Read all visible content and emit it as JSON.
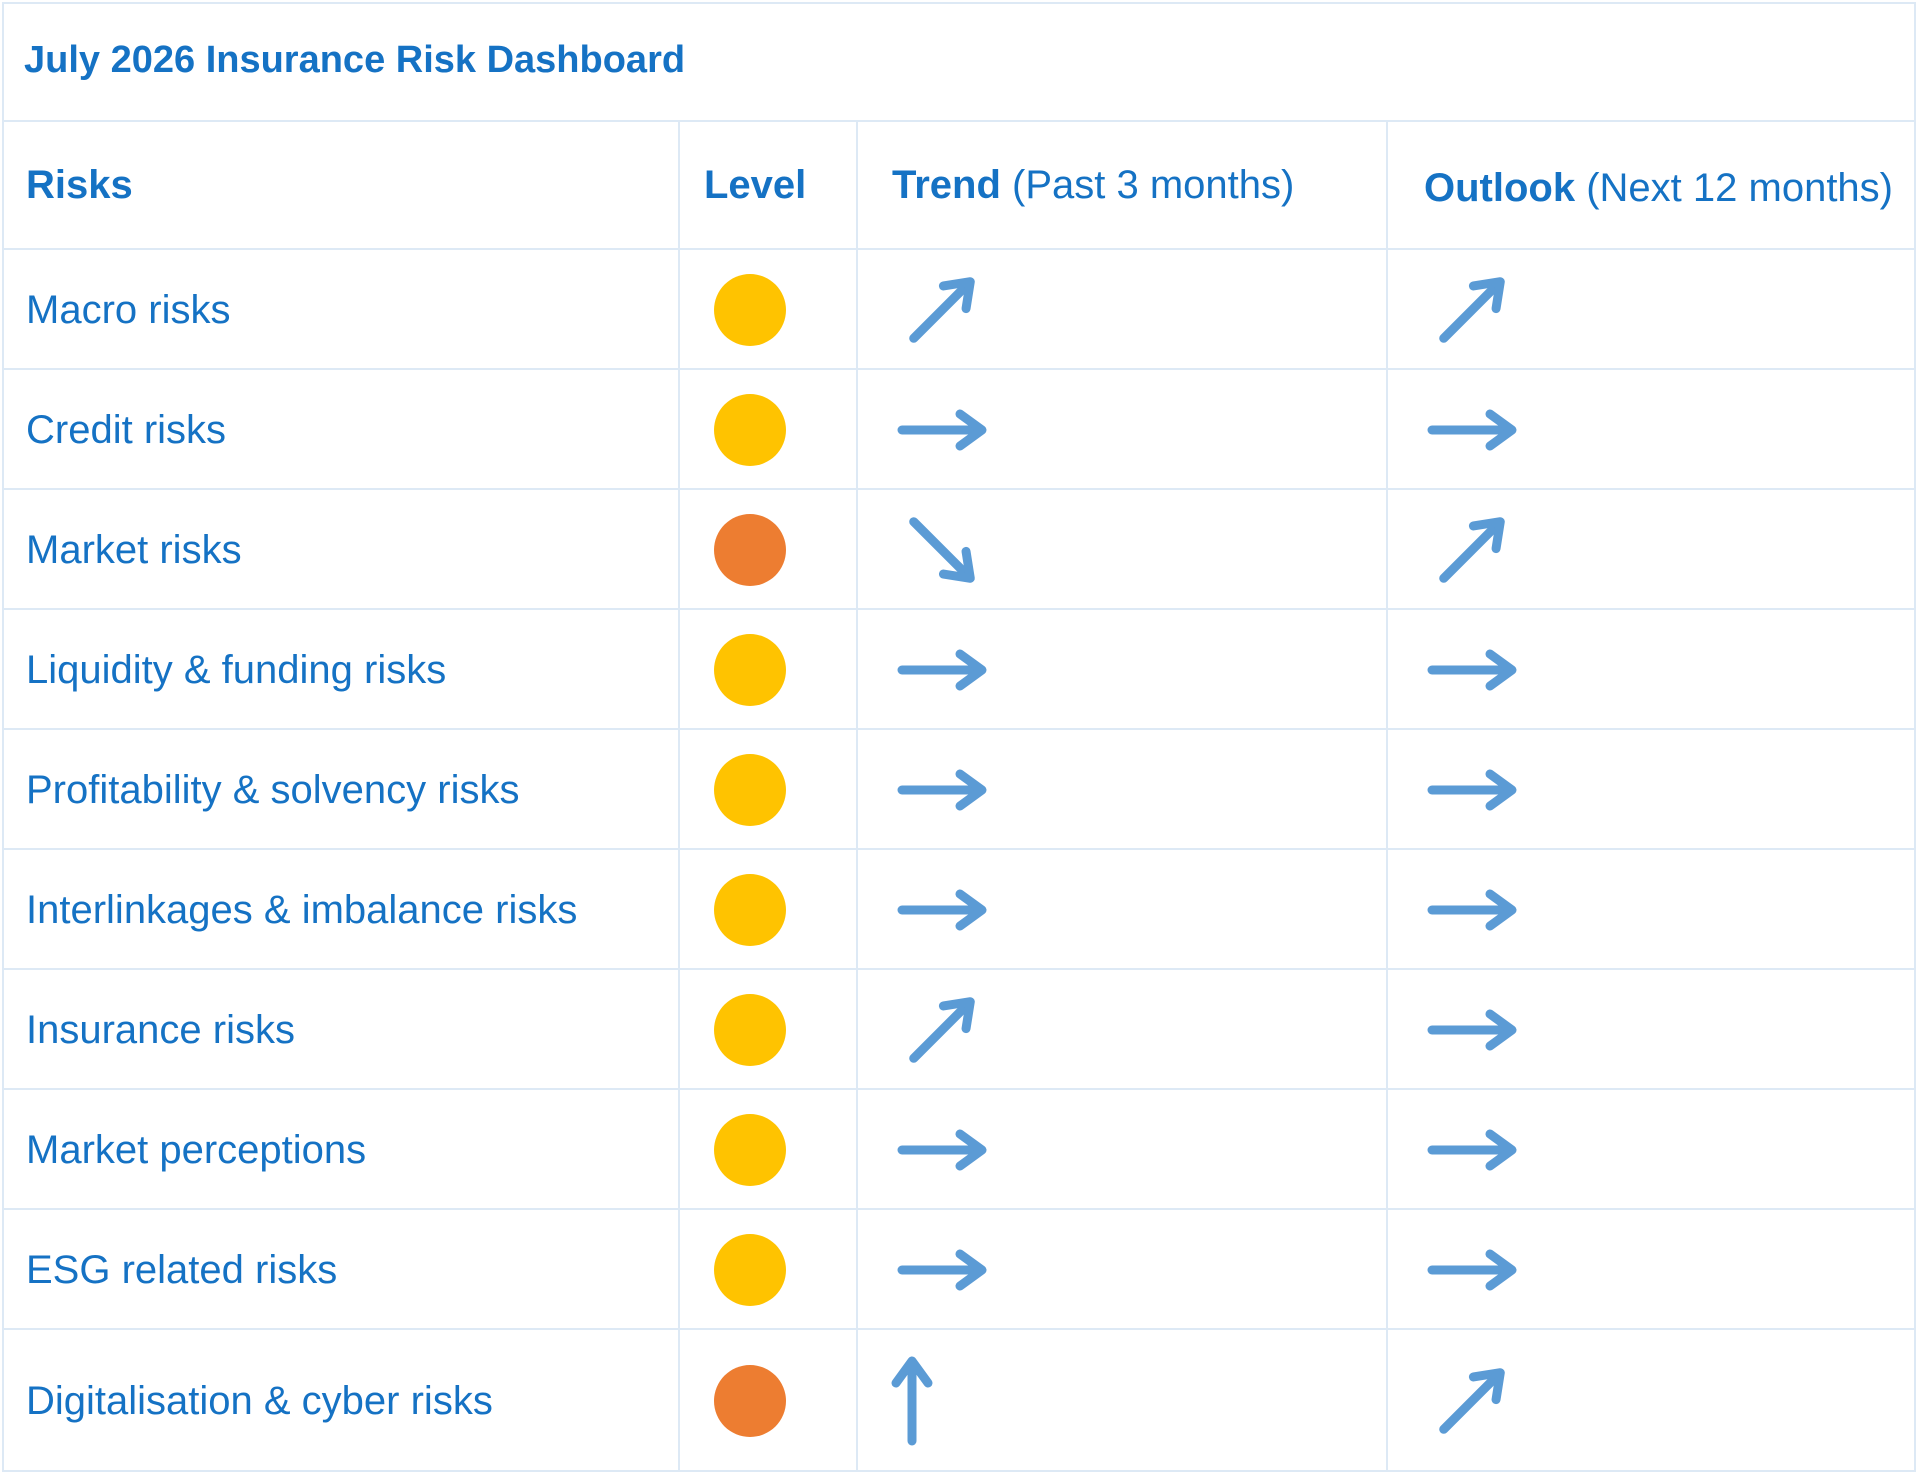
{
  "title": "July 2026 Insurance Risk Dashboard",
  "headers": {
    "risks": "Risks",
    "level": "Level",
    "trend_bold": "Trend",
    "trend_rest": "(Past 3 months)",
    "outlook_bold": "Outlook",
    "outlook_rest": "(Next 12 months)"
  },
  "colors": {
    "amber": "#ffc300",
    "orange": "#ed7d31",
    "arrow": "#5b9bd5",
    "text": "#1572c4"
  },
  "rows": [
    {
      "risk": "Macro risks",
      "level": "amber",
      "trend": "up-right",
      "outlook": "up-right"
    },
    {
      "risk": "Credit risks",
      "level": "amber",
      "trend": "right",
      "outlook": "right"
    },
    {
      "risk": "Market risks",
      "level": "orange",
      "trend": "down-right",
      "outlook": "up-right"
    },
    {
      "risk": "Liquidity & funding risks",
      "level": "amber",
      "trend": "right",
      "outlook": "right"
    },
    {
      "risk": "Profitability & solvency risks",
      "level": "amber",
      "trend": "right",
      "outlook": "right"
    },
    {
      "risk": "Interlinkages & imbalance risks",
      "level": "amber",
      "trend": "right",
      "outlook": "right"
    },
    {
      "risk": "Insurance risks",
      "level": "amber",
      "trend": "up-right",
      "outlook": "right"
    },
    {
      "risk": "Market perceptions",
      "level": "amber",
      "trend": "right",
      "outlook": "right"
    },
    {
      "risk": "ESG related risks",
      "level": "amber",
      "trend": "right",
      "outlook": "right"
    },
    {
      "risk": "Digitalisation & cyber risks",
      "level": "orange",
      "trend": "up",
      "outlook": "up-right"
    }
  ]
}
